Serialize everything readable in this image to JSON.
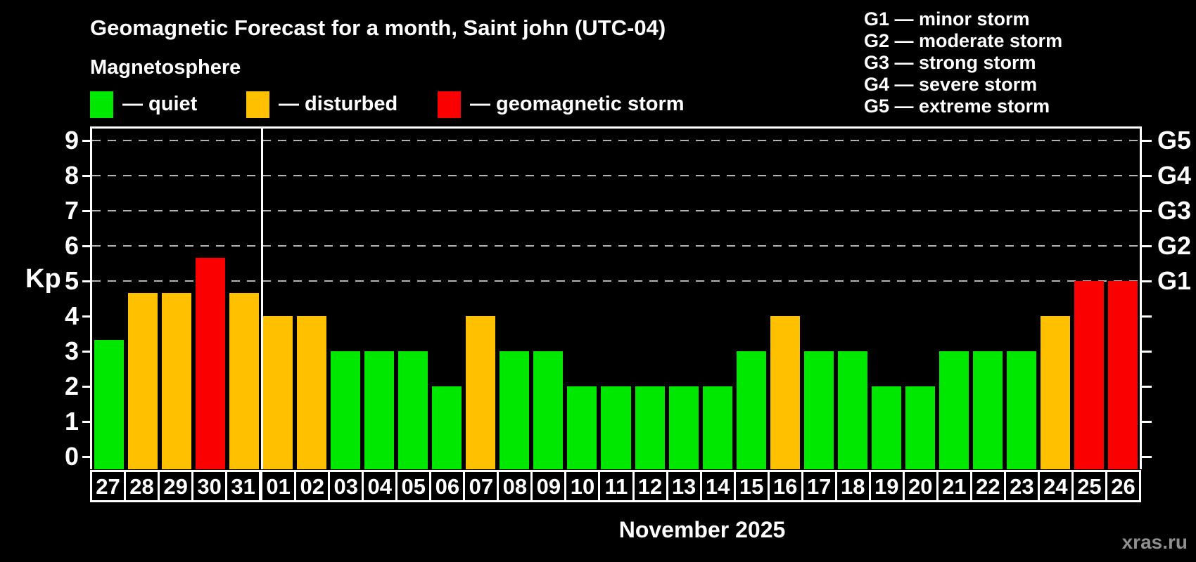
{
  "header": {
    "title": "Geomagnetic Forecast for a month, Saint john (UTC-04)",
    "subtitle": "Magnetosphere"
  },
  "legend": {
    "items": [
      {
        "label": "— quiet",
        "state": "quiet",
        "color": "#00e800"
      },
      {
        "label": "— disturbed",
        "state": "disturbed",
        "color": "#ffc000"
      },
      {
        "label": "— geomagnetic storm",
        "state": "storm",
        "color": "#fa0000"
      }
    ]
  },
  "storm_scale_legend": {
    "items": [
      "G1 — minor storm",
      "G2 — moderate storm",
      "G3 — strong storm",
      "G4 — severe storm",
      "G5 — extreme storm"
    ]
  },
  "chart_data": {
    "type": "bar",
    "title": "Geomagnetic Forecast for a month, Saint john (UTC-04)",
    "ylabel": "Kp",
    "xlabel": "November 2025",
    "ylim": [
      0,
      9
    ],
    "yticks": [
      0,
      1,
      2,
      3,
      4,
      5,
      6,
      7,
      8,
      9
    ],
    "gridlines_kp": [
      5,
      6,
      7,
      8,
      9
    ],
    "right_axis": [
      {
        "kp": 5,
        "label": "G1"
      },
      {
        "kp": 6,
        "label": "G2"
      },
      {
        "kp": 7,
        "label": "G3"
      },
      {
        "kp": 8,
        "label": "G4"
      },
      {
        "kp": 9,
        "label": "G5"
      }
    ],
    "month_separator_index": 5,
    "grid": "dashed-at-storm-levels",
    "legend_position": "top",
    "colors": {
      "quiet": "#00e800",
      "disturbed": "#ffc000",
      "storm": "#fa0000",
      "background": "#000000",
      "axis": "#ffffff",
      "gridline": "#b3b3b3"
    },
    "categories": [
      "27",
      "28",
      "29",
      "30",
      "31",
      "01",
      "02",
      "03",
      "04",
      "05",
      "06",
      "07",
      "08",
      "09",
      "10",
      "11",
      "12",
      "13",
      "14",
      "15",
      "16",
      "17",
      "18",
      "19",
      "20",
      "21",
      "22",
      "23",
      "24",
      "25",
      "26"
    ],
    "bars": [
      {
        "day": "27",
        "kp": 3.33,
        "state": "quiet"
      },
      {
        "day": "28",
        "kp": 4.67,
        "state": "disturbed"
      },
      {
        "day": "29",
        "kp": 4.67,
        "state": "disturbed"
      },
      {
        "day": "30",
        "kp": 5.67,
        "state": "storm"
      },
      {
        "day": "31",
        "kp": 4.67,
        "state": "disturbed"
      },
      {
        "day": "01",
        "kp": 4,
        "state": "disturbed"
      },
      {
        "day": "02",
        "kp": 4,
        "state": "disturbed"
      },
      {
        "day": "03",
        "kp": 3,
        "state": "quiet"
      },
      {
        "day": "04",
        "kp": 3,
        "state": "quiet"
      },
      {
        "day": "05",
        "kp": 3,
        "state": "quiet"
      },
      {
        "day": "06",
        "kp": 2,
        "state": "quiet"
      },
      {
        "day": "07",
        "kp": 4,
        "state": "disturbed"
      },
      {
        "day": "08",
        "kp": 3,
        "state": "quiet"
      },
      {
        "day": "09",
        "kp": 3,
        "state": "quiet"
      },
      {
        "day": "10",
        "kp": 2,
        "state": "quiet"
      },
      {
        "day": "11",
        "kp": 2,
        "state": "quiet"
      },
      {
        "day": "12",
        "kp": 2,
        "state": "quiet"
      },
      {
        "day": "13",
        "kp": 2,
        "state": "quiet"
      },
      {
        "day": "14",
        "kp": 2,
        "state": "quiet"
      },
      {
        "day": "15",
        "kp": 3,
        "state": "quiet"
      },
      {
        "day": "16",
        "kp": 4,
        "state": "disturbed"
      },
      {
        "day": "17",
        "kp": 3,
        "state": "quiet"
      },
      {
        "day": "18",
        "kp": 3,
        "state": "quiet"
      },
      {
        "day": "19",
        "kp": 2,
        "state": "quiet"
      },
      {
        "day": "20",
        "kp": 2,
        "state": "quiet"
      },
      {
        "day": "21",
        "kp": 3,
        "state": "quiet"
      },
      {
        "day": "22",
        "kp": 3,
        "state": "quiet"
      },
      {
        "day": "23",
        "kp": 3,
        "state": "quiet"
      },
      {
        "day": "24",
        "kp": 4,
        "state": "disturbed"
      },
      {
        "day": "25",
        "kp": 5,
        "state": "storm"
      },
      {
        "day": "26",
        "kp": 5,
        "state": "storm"
      }
    ]
  },
  "footer": {
    "xaxis_title": "November 2025",
    "watermark": "xras.ru"
  }
}
